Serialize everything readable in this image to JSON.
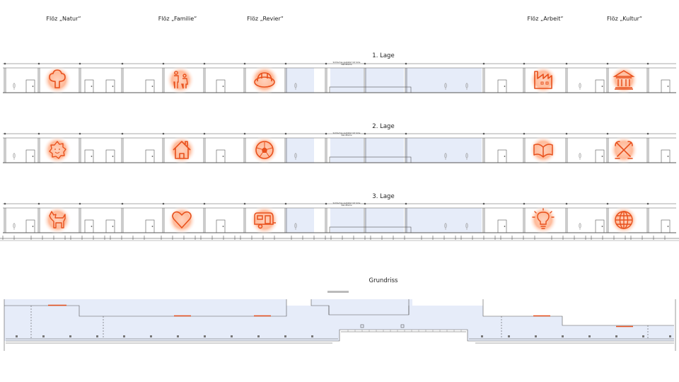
{
  "column_labels": [
    "Flöz „Natur“",
    "Flöz „Familie“",
    "Flöz „Revier“",
    "Flöz „Arbeit“",
    "Flöz „Kultur“"
  ],
  "rows": [
    {
      "title": "1. Lage",
      "note": "Sichtachse gestaltet mit hohe Wandfläche",
      "icons": [
        "tree-icon",
        "family-icon",
        "hardhat-icon",
        "factory-icon",
        "museum-icon"
      ]
    },
    {
      "title": "2. Lage",
      "note": "Sichtachse gestaltet mit hohe Wandfläche",
      "icons": [
        "sun-icon",
        "house-icon",
        "football-icon",
        "book-icon",
        "tools-icon"
      ]
    },
    {
      "title": "3. Lage",
      "note": "Sichtachse gestaltet mit hohe Wandfläche",
      "icons": [
        "dog-icon",
        "heart-icon",
        "caravan-icon",
        "lightbulb-icon",
        "globe-icon"
      ]
    }
  ],
  "plan": {
    "title": "Grundriss"
  },
  "colors": {
    "accent": "#e8501c",
    "glow": "#ffb38f",
    "glass": "#e6ecf9",
    "line": "#555555"
  }
}
